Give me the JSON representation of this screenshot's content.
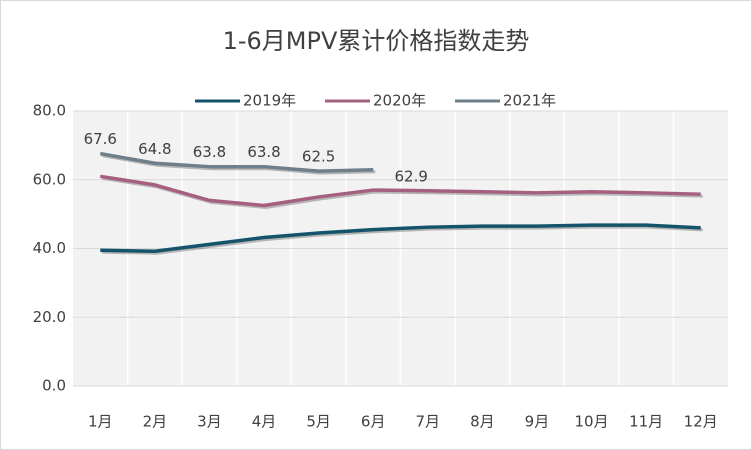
{
  "chart_data": {
    "type": "line",
    "title": "1-6月MPV累计价格指数走势",
    "categories": [
      "1月",
      "2月",
      "3月",
      "4月",
      "5月",
      "6月",
      "7月",
      "8月",
      "9月",
      "10月",
      "11月",
      "12月"
    ],
    "series": [
      {
        "name": "2019年",
        "color": "#15536a",
        "values": [
          39.5,
          39.2,
          41.2,
          43.2,
          44.5,
          45.5,
          46.2,
          46.5,
          46.5,
          46.8,
          46.8,
          46.0
        ]
      },
      {
        "name": "2020年",
        "color": "#a5607f",
        "values": [
          61.0,
          58.5,
          54.0,
          52.5,
          55.0,
          57.0,
          56.8,
          56.5,
          56.2,
          56.5,
          56.2,
          55.8
        ]
      },
      {
        "name": "2021年",
        "color": "#6f7f8a",
        "values": [
          67.6,
          64.8,
          63.8,
          63.8,
          62.5,
          62.9,
          null,
          null,
          null,
          null,
          null,
          null
        ],
        "show_labels": true
      }
    ],
    "ylim": [
      0,
      80
    ],
    "yticks": [
      {
        "value": 0,
        "label": "0.0"
      },
      {
        "value": 20,
        "label": "20.0"
      },
      {
        "value": 40,
        "label": "40.0"
      },
      {
        "value": 60,
        "label": "60.0"
      },
      {
        "value": 80,
        "label": "80.0"
      }
    ],
    "grid": true,
    "legend": "top"
  }
}
